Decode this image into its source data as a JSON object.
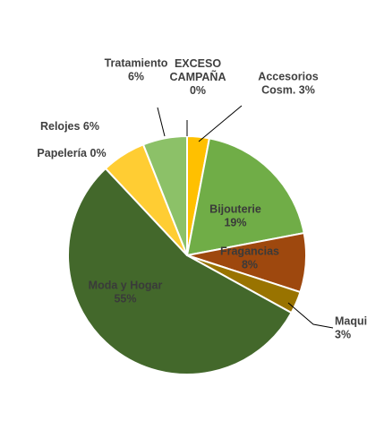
{
  "chart_data": {
    "type": "pie",
    "slices": [
      {
        "name": "Accesorios Cosm.",
        "lines": [
          "Accesorios",
          "Cosm. 3%"
        ],
        "value": 3,
        "color": "#ffc000"
      },
      {
        "name": "Bijouterie",
        "lines": [
          "Bijouterie",
          "19%"
        ],
        "value": 19,
        "color": "#70ad47"
      },
      {
        "name": "Fragancias",
        "lines": [
          "Fragancias",
          "8%"
        ],
        "value": 8,
        "color": "#9e480e"
      },
      {
        "name": "Maquillaje",
        "lines": [
          "Maqui",
          "3%"
        ],
        "value": 3,
        "color": "#997300"
      },
      {
        "name": "Moda y Hogar",
        "lines": [
          "Moda y Hogar",
          "55%"
        ],
        "value": 55,
        "color": "#43682b"
      },
      {
        "name": "Papelería",
        "lines": [
          "Papelería 0%"
        ],
        "value": 0,
        "color": "#a5a5a5"
      },
      {
        "name": "Relojes",
        "lines": [
          "Relojes 6%"
        ],
        "value": 6,
        "color": "#ffcd33"
      },
      {
        "name": "Tratamiento",
        "lines": [
          "Tratamiento",
          "6%"
        ],
        "value": 6,
        "color": "#8cc168"
      },
      {
        "name": "EXCESO CAMPAÑA",
        "lines": [
          "EXCESO",
          "CAMPAÑA",
          "0%"
        ],
        "value": 0,
        "color": "#264478"
      }
    ]
  }
}
